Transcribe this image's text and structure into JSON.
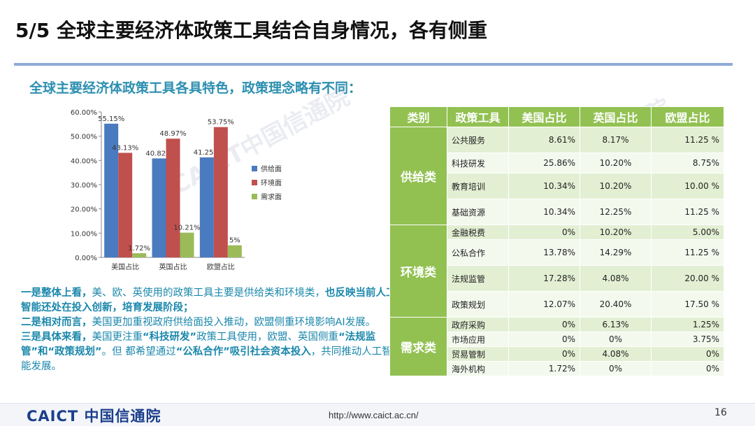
{
  "title": "5/5 全球主要经济体政策工具结合自身情况，各有侧重",
  "subtitle": "全球主要经济体政策工具各具特色，政策理念略有不同：",
  "watermark": "CAICT中国信通院",
  "chart_data": {
    "type": "bar",
    "categories": [
      "美国占比",
      "英国占比",
      "欧盟占比"
    ],
    "series": [
      {
        "name": "供给面",
        "color": "#4a7bc0",
        "values": [
          55.15,
          40.82,
          41.25
        ],
        "labels": [
          "55.15%",
          "40.82%",
          "41.25%"
        ]
      },
      {
        "name": "环境面",
        "color": "#c0504d",
        "values": [
          43.13,
          48.97,
          53.75
        ],
        "labels": [
          "43.13%",
          "48.97%",
          "53.75%"
        ]
      },
      {
        "name": "需求面",
        "color": "#9bbb59",
        "values": [
          1.72,
          10.21,
          5
        ],
        "labels": [
          "1.72%",
          "10.21%",
          "5%"
        ]
      }
    ],
    "yticks": [
      "0.00%",
      "10.00%",
      "20.00%",
      "30.00%",
      "40.00%",
      "50.00%",
      "60.00%"
    ],
    "ylim": [
      0,
      60
    ],
    "grid": false,
    "legend": "right"
  },
  "body": {
    "l1a": "一是整体上看，",
    "l1b": "美、欧、英使用的政策工具主要是供给类和环境类，",
    "l1c": "也反映当前人工智能还处在投入创新，培育发展阶段；",
    "l2a": "二是相对而言，",
    "l2b": "美国更加重视政府供给面投入推动，欧盟侧重环境影响AI发展。",
    "l3a": "三是具体来看，",
    "l3b": "美国更注重",
    "l3c": "“科技研发”",
    "l3d": "政策工具使用，欧盟、英国侧重",
    "l3e": "“法规监管”和“政策规划”",
    "l3f": "。但 都希望通过",
    "l3g": "“公私合作”",
    "l3h": "吸引社会资本投入",
    "l3i": "，共同推动人工智能发展。"
  },
  "table": {
    "headers": [
      "类别",
      "政策工具",
      "美国占比",
      "英国占比",
      "欧盟占比"
    ],
    "categories": [
      "供给类",
      "环境类",
      "需求类"
    ],
    "rows": [
      [
        "公共服务",
        "8.61%",
        "8.17%",
        "11.25 %"
      ],
      [
        "科技研发",
        "25.86%",
        "10.20%",
        "8.75%"
      ],
      [
        "教育培训",
        "10.34%",
        "10.20%",
        "10.00 %"
      ],
      [
        "基础资源",
        "10.34%",
        "12.25%",
        "11.25 %"
      ],
      [
        "金融税费",
        "0%",
        "10.20%",
        "5.00%"
      ],
      [
        "公私合作",
        "13.78%",
        "14.29%",
        "11.25 %"
      ],
      [
        "法规监管",
        "17.28%",
        "4.08%",
        "20.00 %"
      ],
      [
        "政策规划",
        "12.07%",
        "20.40%",
        "17.50 %"
      ],
      [
        "政府采购",
        "0%",
        "6.13%",
        "1.25%"
      ],
      [
        "市场应用",
        "0%",
        "0%",
        "3.75%"
      ],
      [
        "贸易管制",
        "0%",
        "4.08%",
        "0%"
      ],
      [
        "海外机构",
        "1.72%",
        "0%",
        "0%"
      ]
    ]
  },
  "footer": {
    "logo": "CAICT 中国信通院",
    "url": "http://www.caict.ac.cn/",
    "page": "16"
  }
}
